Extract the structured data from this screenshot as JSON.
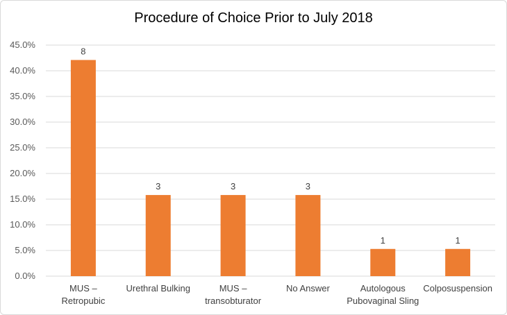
{
  "chart_data": {
    "type": "bar",
    "title": "Procedure of Choice Prior to July 2018",
    "xlabel": "",
    "ylabel": "",
    "categories": [
      [
        "MUS –",
        "Retropubic"
      ],
      [
        "Urethral Bulking"
      ],
      [
        "MUS –",
        "transobturator"
      ],
      [
        "No Answer"
      ],
      [
        "Autologous",
        "Pubovaginal Sling"
      ],
      [
        "Colposuspension"
      ]
    ],
    "values": [
      42.1,
      15.8,
      15.8,
      15.8,
      5.3,
      5.3
    ],
    "data_labels": [
      "8",
      "3",
      "3",
      "3",
      "1",
      "1"
    ],
    "ylim": [
      0,
      45
    ],
    "yticks": [
      0,
      5,
      10,
      15,
      20,
      25,
      30,
      35,
      40,
      45
    ],
    "ytick_labels": [
      "0.0%",
      "5.0%",
      "10.0%",
      "15.0%",
      "20.0%",
      "25.0%",
      "30.0%",
      "35.0%",
      "40.0%",
      "45.0%"
    ],
    "grid": true,
    "bar_color": "#ED7D31",
    "grid_color": "#D9D9D9"
  }
}
